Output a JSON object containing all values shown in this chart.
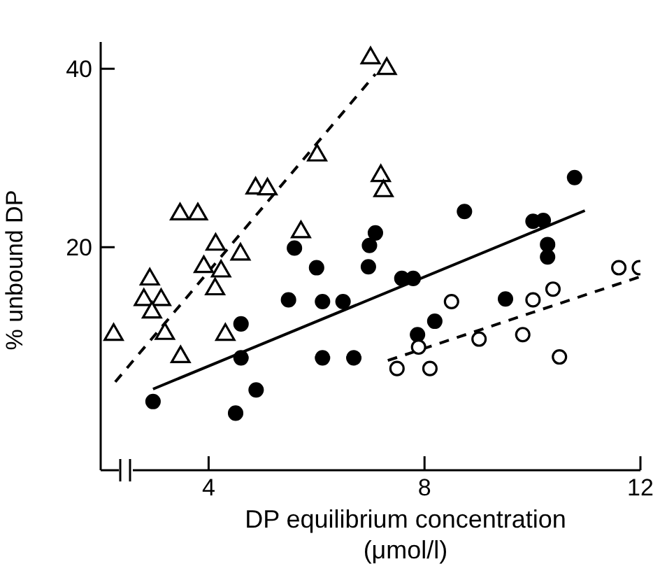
{
  "chart_data": {
    "type": "scatter",
    "xlabel": "DP equilibrium concentration (μmol/l)",
    "ylabel": "% unbound DP",
    "xlim": [
      2,
      12
    ],
    "ylim": [
      -5,
      43
    ],
    "xticks": [
      4,
      8,
      12
    ],
    "yticks": [
      20,
      40
    ],
    "series": [
      {
        "marker": "triangle",
        "color": "#ffffff",
        "x": [
          2.24,
          2.91,
          2.8,
          3.12,
          2.95,
          3.19,
          3.48,
          3.47,
          3.8,
          4.13,
          3.91,
          4.23,
          4.12,
          4.31,
          4.59,
          4.87,
          5.09,
          5.71,
          6.01,
          7.0,
          7.3,
          7.19,
          7.24
        ],
        "values": [
          10.2,
          16.4,
          14.1,
          14.1,
          12.7,
          10.3,
          7.7,
          23.7,
          23.7,
          20.3,
          17.8,
          17.3,
          15.3,
          10.2,
          19.2,
          26.6,
          26.5,
          21.7,
          30.3,
          41.2,
          40.0,
          28.0,
          26.3
        ]
      },
      {
        "marker": "circle",
        "color": "#000000",
        "x": [
          2.97,
          4.5,
          4.88,
          4.6,
          4.6,
          5.48,
          5.59,
          6.0,
          6.11,
          6.11,
          6.49,
          6.69,
          6.96,
          6.98,
          7.09,
          7.58,
          7.79,
          7.87,
          8.19,
          8.74,
          9.5,
          10.01,
          10.2,
          10.28,
          10.28,
          10.78
        ],
        "values": [
          2.7,
          1.4,
          4.0,
          7.6,
          11.4,
          14.1,
          19.9,
          17.7,
          13.9,
          7.6,
          13.9,
          7.6,
          17.8,
          20.2,
          21.6,
          16.5,
          16.5,
          10.2,
          11.7,
          24.0,
          14.2,
          22.9,
          23.0,
          20.3,
          18.9,
          27.8
        ]
      },
      {
        "marker": "circle",
        "color": "#ffffff",
        "x": [
          7.49,
          8.1,
          7.89,
          8.5,
          9.01,
          9.82,
          10.01,
          10.38,
          10.5,
          11.6,
          11.98
        ],
        "values": [
          6.4,
          6.4,
          8.8,
          13.9,
          9.7,
          10.2,
          14.1,
          15.3,
          7.7,
          17.7,
          17.7
        ]
      },
      {
        "type": "line",
        "line_style": "dashed",
        "marker": "none",
        "color": "#000000",
        "x": [
          2.27,
          7.09
        ],
        "values": [
          4.9,
          39.4
        ]
      },
      {
        "type": "line",
        "line_style": "solid",
        "marker": "none",
        "color": "#000000",
        "x": [
          2.97,
          10.97
        ],
        "values": [
          4.1,
          24.1
        ]
      },
      {
        "type": "line",
        "line_style": "dashed",
        "marker": "none",
        "color": "#000000",
        "x": [
          7.32,
          12
        ],
        "values": [
          7.3,
          16.7
        ]
      }
    ]
  }
}
